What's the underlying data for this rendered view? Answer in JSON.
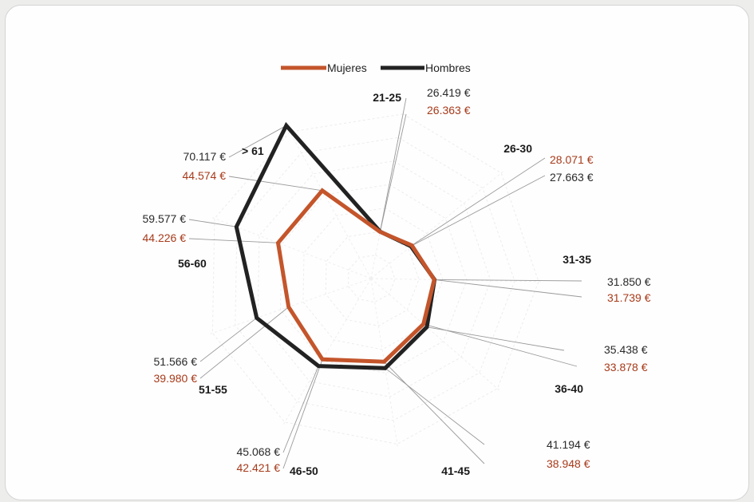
{
  "colors": {
    "mujeres": "#c4552b",
    "hombres": "#222222",
    "mujeres_text": "#a73a1a",
    "hombres_text": "#2a2a2a"
  },
  "legend": {
    "mujeres": "Mujeres",
    "hombres": "Hombres"
  },
  "chart_data": {
    "type": "radar",
    "title": "",
    "categories": [
      "21-25",
      "26-30",
      "31-35",
      "36-40",
      "41-45",
      "46-50",
      "51-55",
      "56-60",
      "> 61"
    ],
    "series": [
      {
        "name": "Mujeres",
        "values": [
          26363,
          28071,
          31739,
          33878,
          38948,
          42421,
          39980,
          44226,
          44574
        ],
        "labels": [
          "26.363 €",
          "28.071 €",
          "31.739 €",
          "33.878 €",
          "38.948 €",
          "42.421 €",
          "39.980 €",
          "44.226 €",
          "44.574 €"
        ]
      },
      {
        "name": "Hombres",
        "values": [
          26419,
          27663,
          31850,
          35438,
          41194,
          45068,
          51566,
          59577,
          70117
        ],
        "labels": [
          "26.419 €",
          "27.663 €",
          "31.850 €",
          "35.438 €",
          "41.194 €",
          "45.068 €",
          "51.566 €",
          "59.577 €",
          "70.117 €"
        ]
      }
    ],
    "legend_position": "top-center",
    "grid": true
  }
}
